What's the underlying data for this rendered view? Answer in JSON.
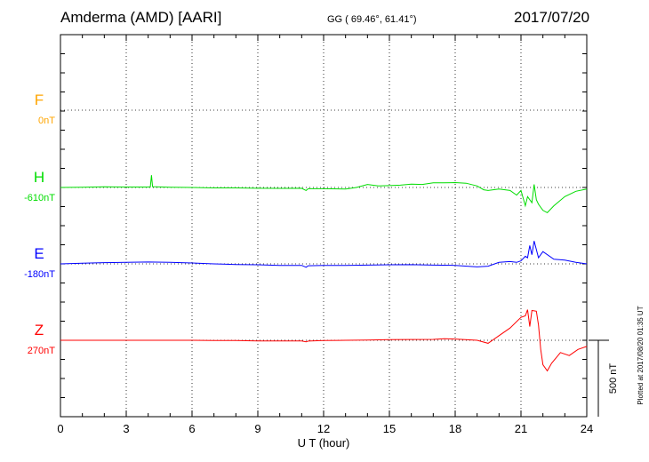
{
  "header": {
    "title": "Amderma (AMD)  [AARI]",
    "coords": "GG ( 69.46°,  61.41°)",
    "date": "2017/07/20"
  },
  "footer_note": "Plotted at 2017/08/20 01:35 UT",
  "chart_data": {
    "type": "line",
    "title": "Amderma (AMD)  [AARI]",
    "xlabel": "U T (hour)",
    "xlim": [
      0,
      24
    ],
    "xticks": [
      "0",
      "3",
      "6",
      "9",
      "12",
      "15",
      "18",
      "21",
      "24"
    ],
    "grid": true,
    "scale_bar": {
      "label": "500 nT",
      "value": 500
    },
    "series": [
      {
        "name": "F",
        "baseline_label": "0nT",
        "color": "#ffa500",
        "offset": 500,
        "x": [],
        "y": []
      },
      {
        "name": "H",
        "baseline_label": "-610nT",
        "color": "#00dd00",
        "offset": 0,
        "x": [
          0,
          1,
          2,
          3,
          4,
          4.1,
          4.15,
          4.2,
          5,
          6,
          7,
          8,
          9,
          10,
          11,
          11.2,
          11.3,
          12,
          13,
          13.5,
          14,
          14.5,
          15,
          15.5,
          16,
          16.5,
          17,
          17.5,
          18,
          18.5,
          19,
          19.3,
          19.5,
          20,
          20.5,
          20.8,
          21,
          21.2,
          21.3,
          21.5,
          21.6,
          21.7,
          21.8,
          22,
          22.2,
          22.5,
          23,
          23.5,
          24
        ],
        "y": [
          0,
          2,
          4,
          3,
          3,
          4,
          80,
          5,
          2,
          0,
          -3,
          -3,
          -5,
          -6,
          -5,
          -20,
          -8,
          -8,
          -10,
          0,
          20,
          10,
          12,
          15,
          22,
          20,
          30,
          30,
          32,
          28,
          10,
          -15,
          -20,
          -10,
          -20,
          -50,
          -20,
          -120,
          -60,
          -100,
          20,
          -80,
          -110,
          -150,
          -165,
          -120,
          -60,
          -25,
          -10
        ]
      },
      {
        "name": "E",
        "baseline_label": "-180nT",
        "color": "#0000ff",
        "offset": 0,
        "x": [
          0,
          1,
          2,
          3,
          4,
          5,
          6,
          7,
          8,
          9,
          10,
          11,
          11.2,
          11.3,
          12,
          13,
          14,
          15,
          16,
          17,
          18,
          19,
          19.5,
          20,
          20.5,
          20.8,
          21,
          21.2,
          21.3,
          21.4,
          21.5,
          21.6,
          21.8,
          22,
          22.5,
          23,
          23.5,
          24
        ],
        "y": [
          0,
          4,
          8,
          10,
          12,
          10,
          6,
          0,
          -4,
          -6,
          -10,
          -10,
          -22,
          -12,
          -10,
          -10,
          -8,
          -6,
          -5,
          -8,
          -10,
          -20,
          -15,
          10,
          15,
          10,
          20,
          50,
          40,
          120,
          60,
          150,
          40,
          80,
          30,
          25,
          10,
          0
        ]
      },
      {
        "name": "Z",
        "baseline_label": "270nT",
        "color": "#ff0000",
        "offset": 0,
        "x": [
          0,
          1,
          2,
          3,
          4,
          5,
          6,
          7,
          8,
          9,
          10,
          11,
          11.2,
          11.3,
          12,
          13,
          14,
          15,
          16,
          17,
          17.5,
          18,
          19,
          19.5,
          20,
          20.5,
          21,
          21.2,
          21.3,
          21.4,
          21.5,
          21.7,
          21.8,
          21.9,
          22,
          22.2,
          22.4,
          22.8,
          23.2,
          23.6,
          24
        ],
        "y": [
          0,
          0,
          0,
          0,
          0,
          0,
          0,
          -2,
          -2,
          -4,
          -4,
          -4,
          -10,
          -5,
          -2,
          0,
          2,
          4,
          5,
          6,
          10,
          8,
          0,
          -20,
          30,
          80,
          150,
          160,
          200,
          90,
          195,
          190,
          100,
          -60,
          -160,
          -200,
          -150,
          -80,
          -100,
          -60,
          -40
        ]
      }
    ]
  }
}
